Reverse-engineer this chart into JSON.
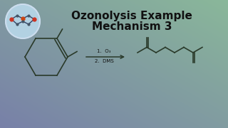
{
  "title_line1": "Ozonolysis Example",
  "title_line2": "Mechanism 3",
  "title_fontsize": 11,
  "reagent_line1": "1.  O₃",
  "reagent_line2": "2.  DMS",
  "bg_color_tl": "#8ab89a",
  "bg_color_tr": "#9098b8",
  "bg_color_bl": "#7aaa8a",
  "bg_color_br": "#7880a8",
  "structure_color": "#2a3a2a",
  "text_color": "#111111",
  "logo_bg": "#b8d8ea"
}
